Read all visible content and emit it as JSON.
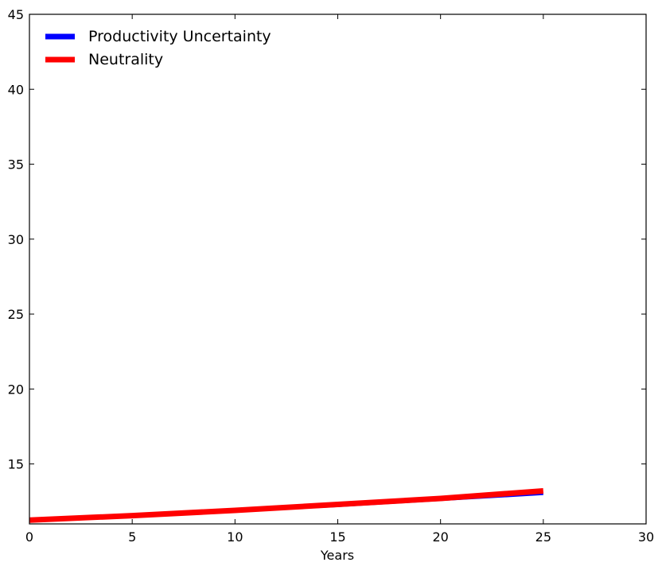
{
  "chart_data": {
    "type": "line",
    "title": "",
    "xlabel": "Years",
    "ylabel": "",
    "xlim": [
      0,
      30
    ],
    "ylim": [
      11,
      45
    ],
    "xticks": [
      0,
      5,
      10,
      15,
      20,
      25,
      30
    ],
    "yticks": [
      15,
      20,
      25,
      30,
      35,
      40,
      45
    ],
    "grid": false,
    "legend_position": "top-left",
    "x": [
      0,
      5,
      10,
      15,
      20,
      25
    ],
    "series": [
      {
        "name": "Productivity Uncertainty",
        "color": "#0000ff",
        "values": [
          11.2,
          11.5,
          11.85,
          12.2,
          12.6,
          13.0
        ]
      },
      {
        "name": "Neutrality",
        "color": "#ff0000",
        "values": [
          11.25,
          11.55,
          11.9,
          12.3,
          12.7,
          13.2
        ]
      }
    ]
  }
}
